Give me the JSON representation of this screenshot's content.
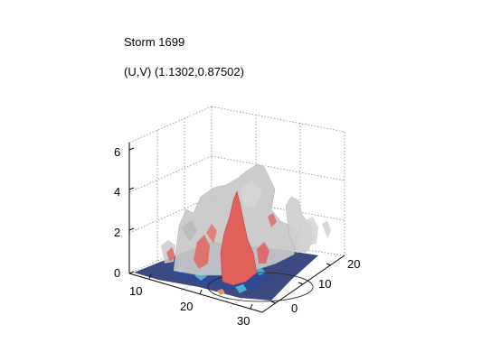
{
  "figure": {
    "title": "Storm 1699",
    "subtitle": "(U,V) (1.1302,0.87502)"
  },
  "axes": {
    "z_ticks": [
      "0",
      "2",
      "4",
      "6"
    ],
    "x_ticks": [
      "10",
      "20",
      "30"
    ],
    "y_ticks": [
      "0",
      "10",
      "20"
    ]
  },
  "colors": {
    "grid": "#888888",
    "axis": "#000000",
    "outer_surface": "#c8c8c8",
    "inner_core": "#e0605a",
    "ground": "#1a2a6b",
    "ground_highlight": "#4ab0d8"
  }
}
